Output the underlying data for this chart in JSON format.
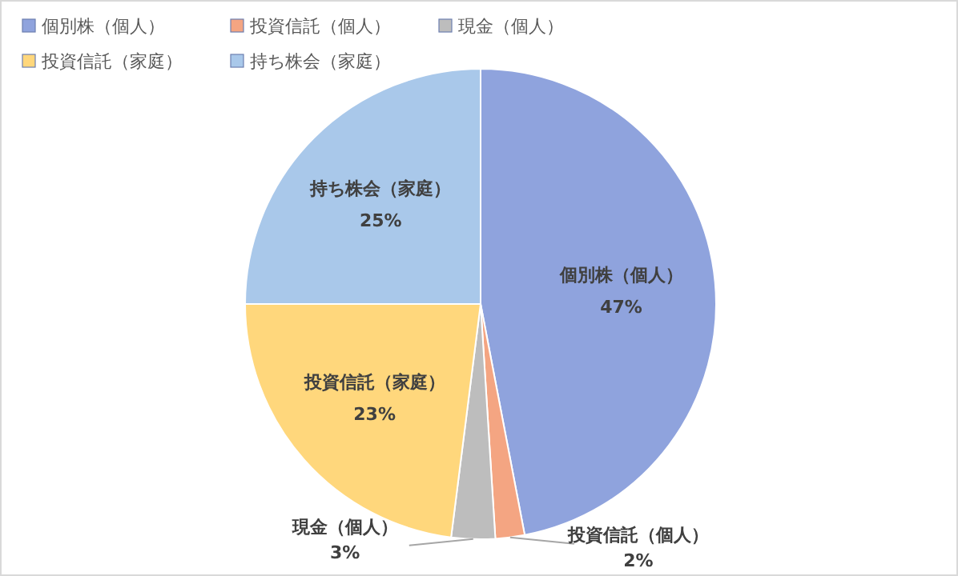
{
  "chart_data": {
    "type": "pie",
    "categories": [
      "個別株（個人）",
      "投資信託（個人）",
      "現金（個人）",
      "投資信託（家庭）",
      "持ち株会（家庭）"
    ],
    "values": [
      47,
      2,
      3,
      23,
      25
    ],
    "colors": [
      "#8fa3dd",
      "#f4a582",
      "#bdbdbd",
      "#ffd77c",
      "#a9c8ea"
    ],
    "value_labels": [
      "47%",
      "2%",
      "3%",
      "23%",
      "25%"
    ],
    "legend": "top left"
  }
}
